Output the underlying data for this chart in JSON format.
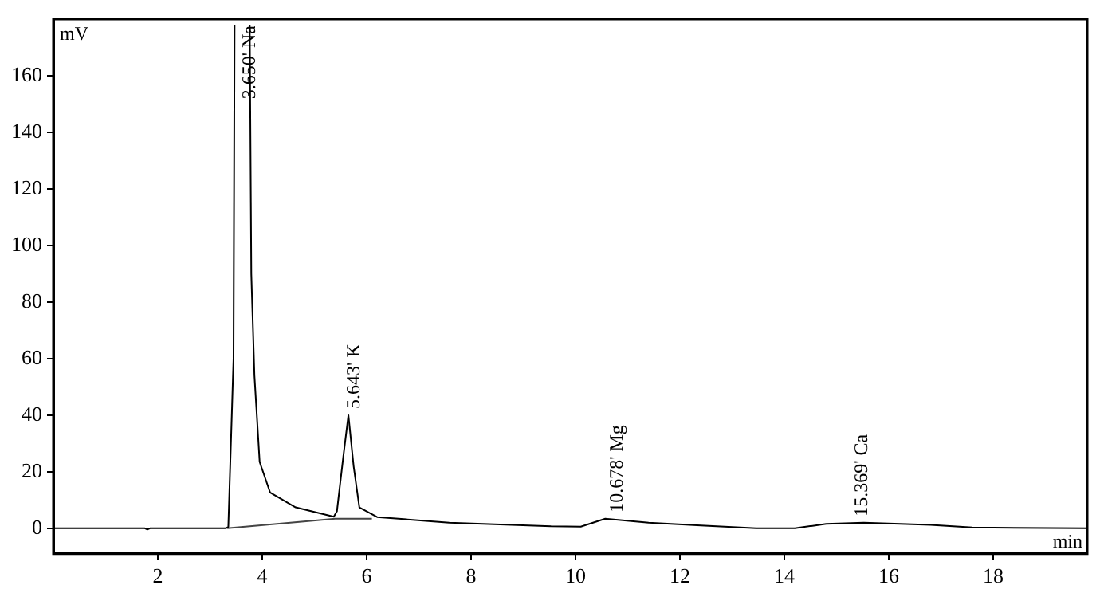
{
  "chart_data": {
    "type": "line",
    "xlabel": "min",
    "ylabel": "mV",
    "xlim": [
      0,
      19.8
    ],
    "ylim": [
      -9,
      180
    ],
    "xticks": [
      2,
      4,
      6,
      8,
      10,
      12,
      14,
      16,
      18
    ],
    "yticks": [
      0,
      20,
      40,
      60,
      80,
      100,
      120,
      140,
      160
    ],
    "grid": false,
    "legend": false,
    "marker": "none",
    "line_style": "solid",
    "series": [
      {
        "color": "#000000",
        "x": [
          0,
          1.75,
          1.8,
          1.85,
          3.3,
          3.35,
          3.45,
          3.47,
          3.6,
          3.76,
          3.79,
          3.85,
          3.95,
          4.15,
          4.64,
          5.37,
          5.43,
          5.55,
          5.65,
          5.75,
          5.86,
          6.2,
          7.58,
          9.53,
          10.1,
          10.57,
          11.4,
          12.4,
          13.46,
          14.2,
          14.8,
          15.52,
          16.8,
          17.6,
          19.8
        ],
        "values": [
          0,
          0,
          -0.4,
          0,
          0,
          0.5,
          60,
          178,
          null,
          178,
          90,
          54,
          23.5,
          12.7,
          7.4,
          4.1,
          6,
          25,
          40,
          22,
          7.4,
          4,
          2,
          0.7,
          0.6,
          3.4,
          2,
          1,
          0,
          0,
          1.6,
          2,
          1.2,
          0.3,
          0
        ]
      },
      {
        "color": "#444444",
        "x": [
          3.33,
          5.4,
          6.1
        ],
        "values": [
          0,
          3.4,
          3.4
        ]
      }
    ],
    "annotations": [
      {
        "text": "3.650' Na",
        "x": 3.65
      },
      {
        "text": "5.643' K",
        "x": 5.643,
        "y": 40
      },
      {
        "text": "10.678' Mg",
        "x": 10.678,
        "y": 3.4
      },
      {
        "text": "15.369' Ca",
        "x": 15.369,
        "y": 2
      }
    ]
  }
}
